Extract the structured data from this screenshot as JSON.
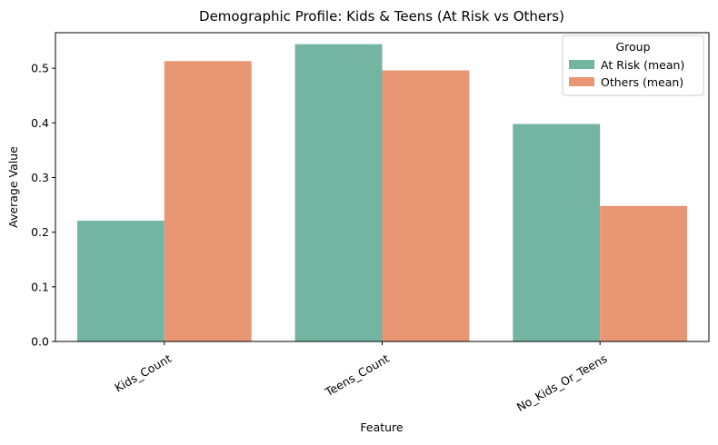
{
  "chart_data": {
    "type": "bar",
    "title": "Demographic Profile: Kids & Teens (At Risk vs Others)",
    "xlabel": "Feature",
    "ylabel": "Average Value",
    "categories": [
      "Kids_Count",
      "Teens_Count",
      "No_Kids_Or_Teens"
    ],
    "series": [
      {
        "name": "At Risk (mean)",
        "values": [
          0.221,
          0.544,
          0.398
        ],
        "color": "#73b5a1"
      },
      {
        "name": "Others (mean)",
        "values": [
          0.513,
          0.496,
          0.248
        ],
        "color": "#e89674"
      }
    ],
    "ylim": [
      0,
      0.565
    ],
    "yticks": [
      "0.0",
      "0.1",
      "0.2",
      "0.3",
      "0.4",
      "0.5"
    ],
    "legend": {
      "title": "Group",
      "placement": "top-right"
    },
    "grid": false
  }
}
